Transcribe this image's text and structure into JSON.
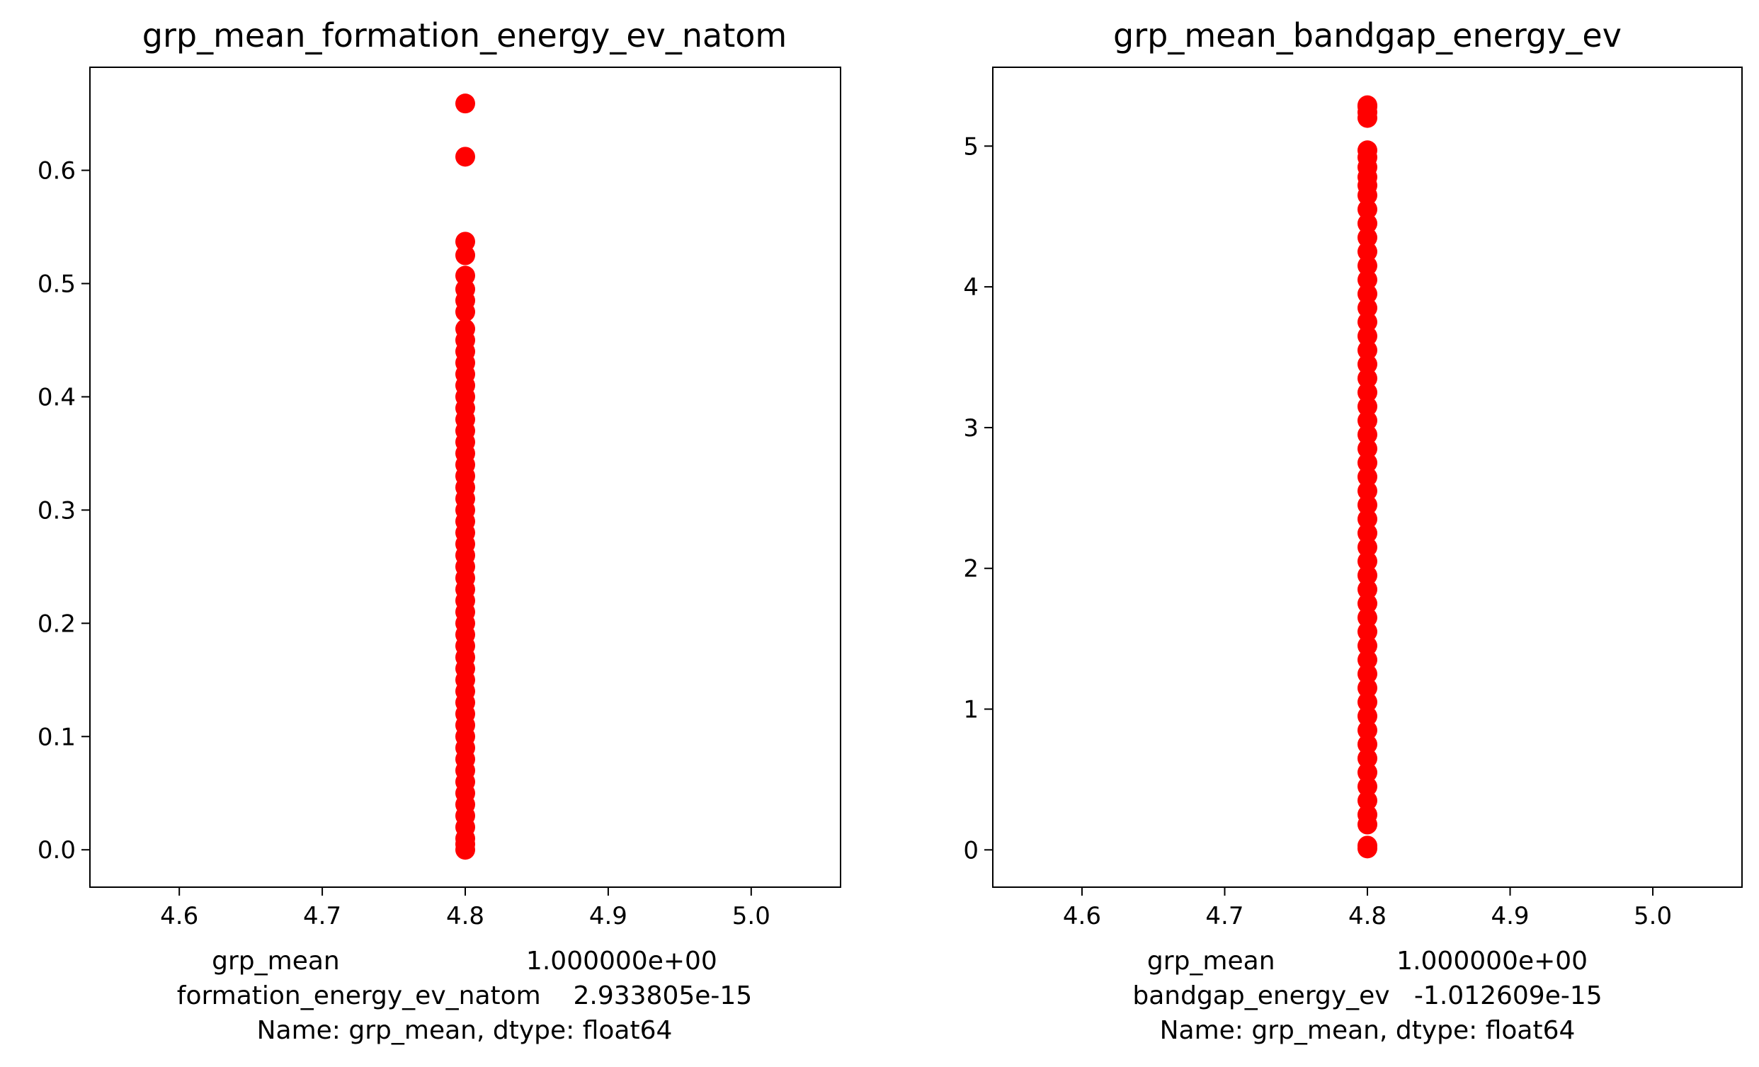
{
  "figure": {
    "background": "#ffffff",
    "marker_color": "#ff0000"
  },
  "chart_data": [
    {
      "type": "scatter",
      "title": "grp_mean_formation_energy_ev_natom",
      "xlabel_lines": [
        "grp_mean                       1.000000e+00",
        "formation_energy_ev_natom    2.933805e-15",
        "Name: grp_mean, dtype: float64"
      ],
      "ylabel": "",
      "xlim": [
        4.5375,
        5.0625
      ],
      "ylim": [
        -0.033,
        0.691
      ],
      "xticks": [
        "4.6",
        "4.7",
        "4.8",
        "4.9",
        "5.0"
      ],
      "xtick_values": [
        4.6,
        4.7,
        4.8,
        4.9,
        5.0
      ],
      "yticks": [
        "0.0",
        "0.1",
        "0.2",
        "0.3",
        "0.4",
        "0.5",
        "0.6"
      ],
      "ytick_values": [
        0.0,
        0.1,
        0.2,
        0.3,
        0.4,
        0.5,
        0.6
      ],
      "grid": false,
      "series": [
        {
          "color": "#ff0000",
          "x": [
            4.8,
            4.8,
            4.8,
            4.8,
            4.8,
            4.8,
            4.8,
            4.8,
            4.8,
            4.8,
            4.8,
            4.8,
            4.8,
            4.8,
            4.8,
            4.8,
            4.8,
            4.8,
            4.8,
            4.8,
            4.8,
            4.8,
            4.8,
            4.8,
            4.8,
            4.8,
            4.8,
            4.8,
            4.8,
            4.8,
            4.8,
            4.8,
            4.8,
            4.8,
            4.8,
            4.8,
            4.8,
            4.8,
            4.8,
            4.8,
            4.8,
            4.8,
            4.8,
            4.8,
            4.8,
            4.8,
            4.8,
            4.8,
            4.8,
            4.8,
            4.8,
            4.8,
            4.8,
            4.8,
            4.8,
            4.8
          ],
          "y": [
            0.0,
            0.005,
            0.01,
            0.02,
            0.03,
            0.04,
            0.05,
            0.06,
            0.07,
            0.08,
            0.09,
            0.1,
            0.11,
            0.12,
            0.13,
            0.14,
            0.15,
            0.16,
            0.17,
            0.18,
            0.19,
            0.2,
            0.21,
            0.22,
            0.23,
            0.24,
            0.25,
            0.26,
            0.27,
            0.28,
            0.29,
            0.3,
            0.31,
            0.32,
            0.33,
            0.34,
            0.35,
            0.36,
            0.37,
            0.38,
            0.39,
            0.4,
            0.41,
            0.42,
            0.43,
            0.44,
            0.45,
            0.46,
            0.475,
            0.485,
            0.495,
            0.507,
            0.525,
            0.537,
            0.612,
            0.659
          ]
        }
      ]
    },
    {
      "type": "scatter",
      "title": "grp_mean_bandgap_energy_ev",
      "xlabel_lines": [
        "grp_mean               1.000000e+00",
        "bandgap_energy_ev   -1.012609e-15",
        "Name: grp_mean, dtype: float64"
      ],
      "ylabel": "",
      "xlim": [
        4.5375,
        5.0625
      ],
      "ylim": [
        -0.265,
        5.56
      ],
      "xticks": [
        "4.6",
        "4.7",
        "4.8",
        "4.9",
        "5.0"
      ],
      "xtick_values": [
        4.6,
        4.7,
        4.8,
        4.9,
        5.0
      ],
      "yticks": [
        "0",
        "1",
        "2",
        "3",
        "4",
        "5"
      ],
      "ytick_values": [
        0,
        1,
        2,
        3,
        4,
        5
      ],
      "grid": false,
      "series": [
        {
          "color": "#ff0000",
          "x": [
            4.8,
            4.8,
            4.8,
            4.8,
            4.8,
            4.8,
            4.8,
            4.8,
            4.8,
            4.8,
            4.8,
            4.8,
            4.8,
            4.8,
            4.8,
            4.8,
            4.8,
            4.8,
            4.8,
            4.8,
            4.8,
            4.8,
            4.8,
            4.8,
            4.8,
            4.8,
            4.8,
            4.8,
            4.8,
            4.8,
            4.8,
            4.8,
            4.8,
            4.8,
            4.8,
            4.8,
            4.8,
            4.8,
            4.8,
            4.8,
            4.8,
            4.8,
            4.8,
            4.8,
            4.8,
            4.8,
            4.8,
            4.8,
            4.8,
            4.8,
            4.8,
            4.8,
            4.8,
            4.8,
            4.8,
            4.8,
            4.8
          ],
          "y": [
            0.01,
            0.03,
            0.18,
            0.25,
            0.35,
            0.45,
            0.55,
            0.65,
            0.75,
            0.85,
            0.95,
            1.05,
            1.15,
            1.25,
            1.35,
            1.45,
            1.55,
            1.65,
            1.75,
            1.85,
            1.95,
            2.05,
            2.15,
            2.25,
            2.35,
            2.45,
            2.55,
            2.65,
            2.75,
            2.85,
            2.95,
            3.05,
            3.15,
            3.25,
            3.35,
            3.45,
            3.55,
            3.65,
            3.75,
            3.85,
            3.95,
            4.05,
            4.15,
            4.25,
            4.35,
            4.45,
            4.55,
            4.65,
            4.72,
            4.78,
            4.85,
            4.92,
            4.97,
            5.2,
            5.24,
            5.28,
            5.29
          ]
        }
      ]
    }
  ]
}
